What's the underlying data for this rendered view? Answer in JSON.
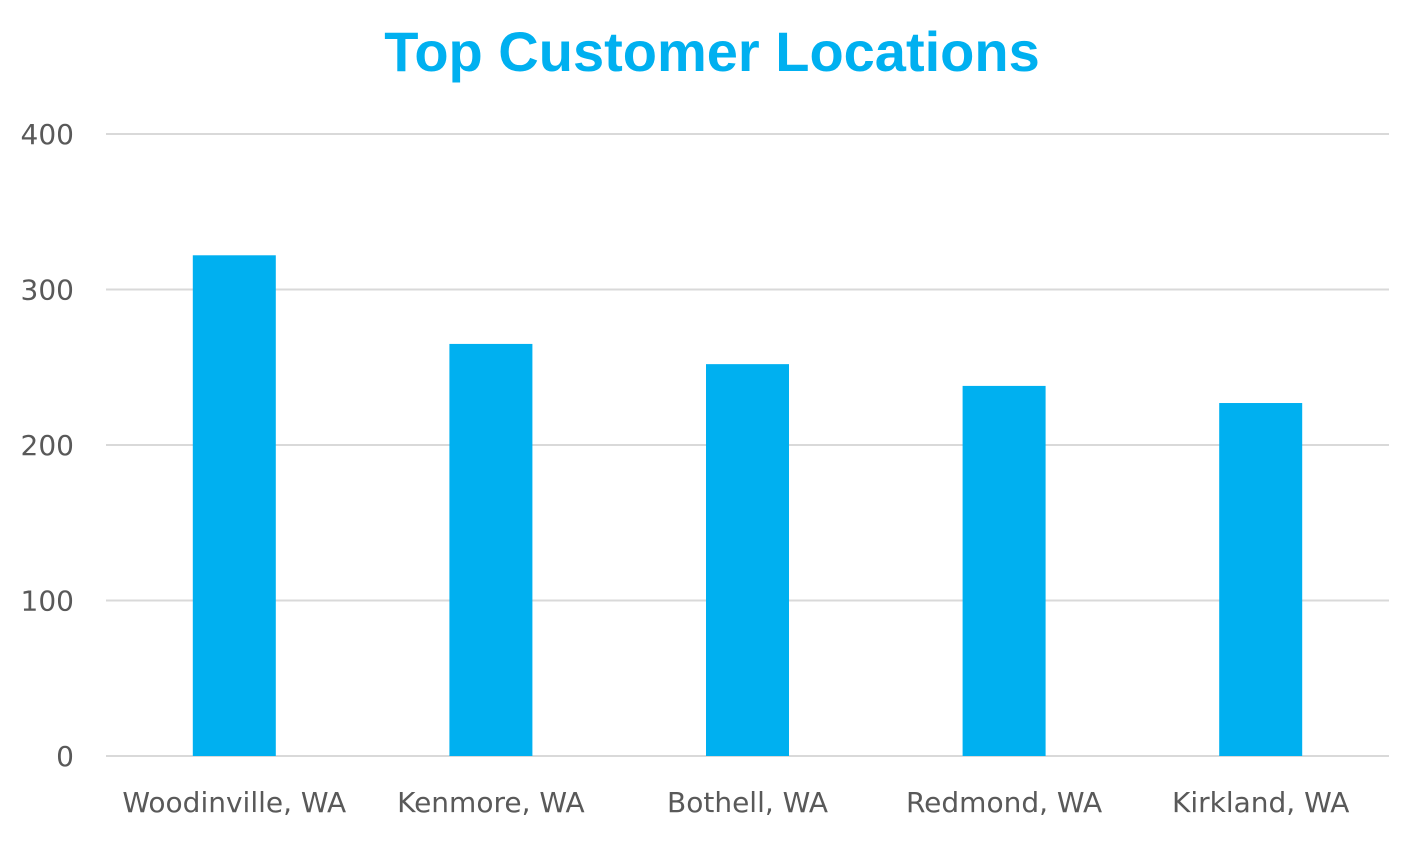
{
  "chart_data": {
    "type": "bar",
    "title": "Top Customer Locations",
    "categories": [
      "Woodinville, WA",
      "Kenmore, WA",
      "Bothell, WA",
      "Redmond, WA",
      "Kirkland, WA"
    ],
    "values": [
      322,
      265,
      252,
      238,
      227
    ],
    "xlabel": "",
    "ylabel": "",
    "ylim": [
      0,
      400
    ],
    "yticks": [
      0,
      100,
      200,
      300,
      400
    ],
    "grid": true,
    "legend": "none",
    "colors": {
      "bar": "#00B0F0",
      "title": "#00B0F0",
      "gridline": "#D9D9D9",
      "tick_text": "#595959"
    }
  }
}
